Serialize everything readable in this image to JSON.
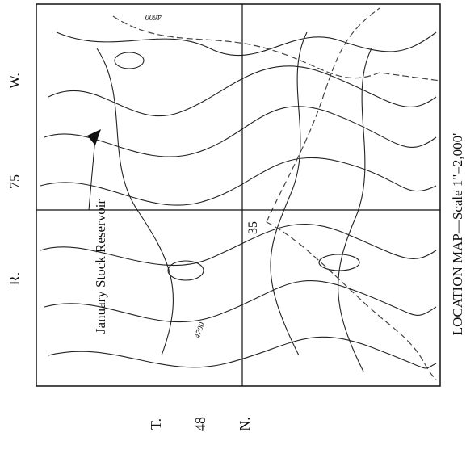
{
  "map": {
    "township_range": {
      "range_prefix": "R.",
      "range_number": "75",
      "range_suffix": "W.",
      "township_prefix": "T.",
      "township_number": "48",
      "township_suffix": "N."
    },
    "labels": {
      "reservoir": "January Stock Reservoir",
      "section": "35",
      "contour_top": "4600",
      "contour_bottom": "4700"
    },
    "caption": "LOCATION MAP—Scale 1\"=2,000'"
  }
}
